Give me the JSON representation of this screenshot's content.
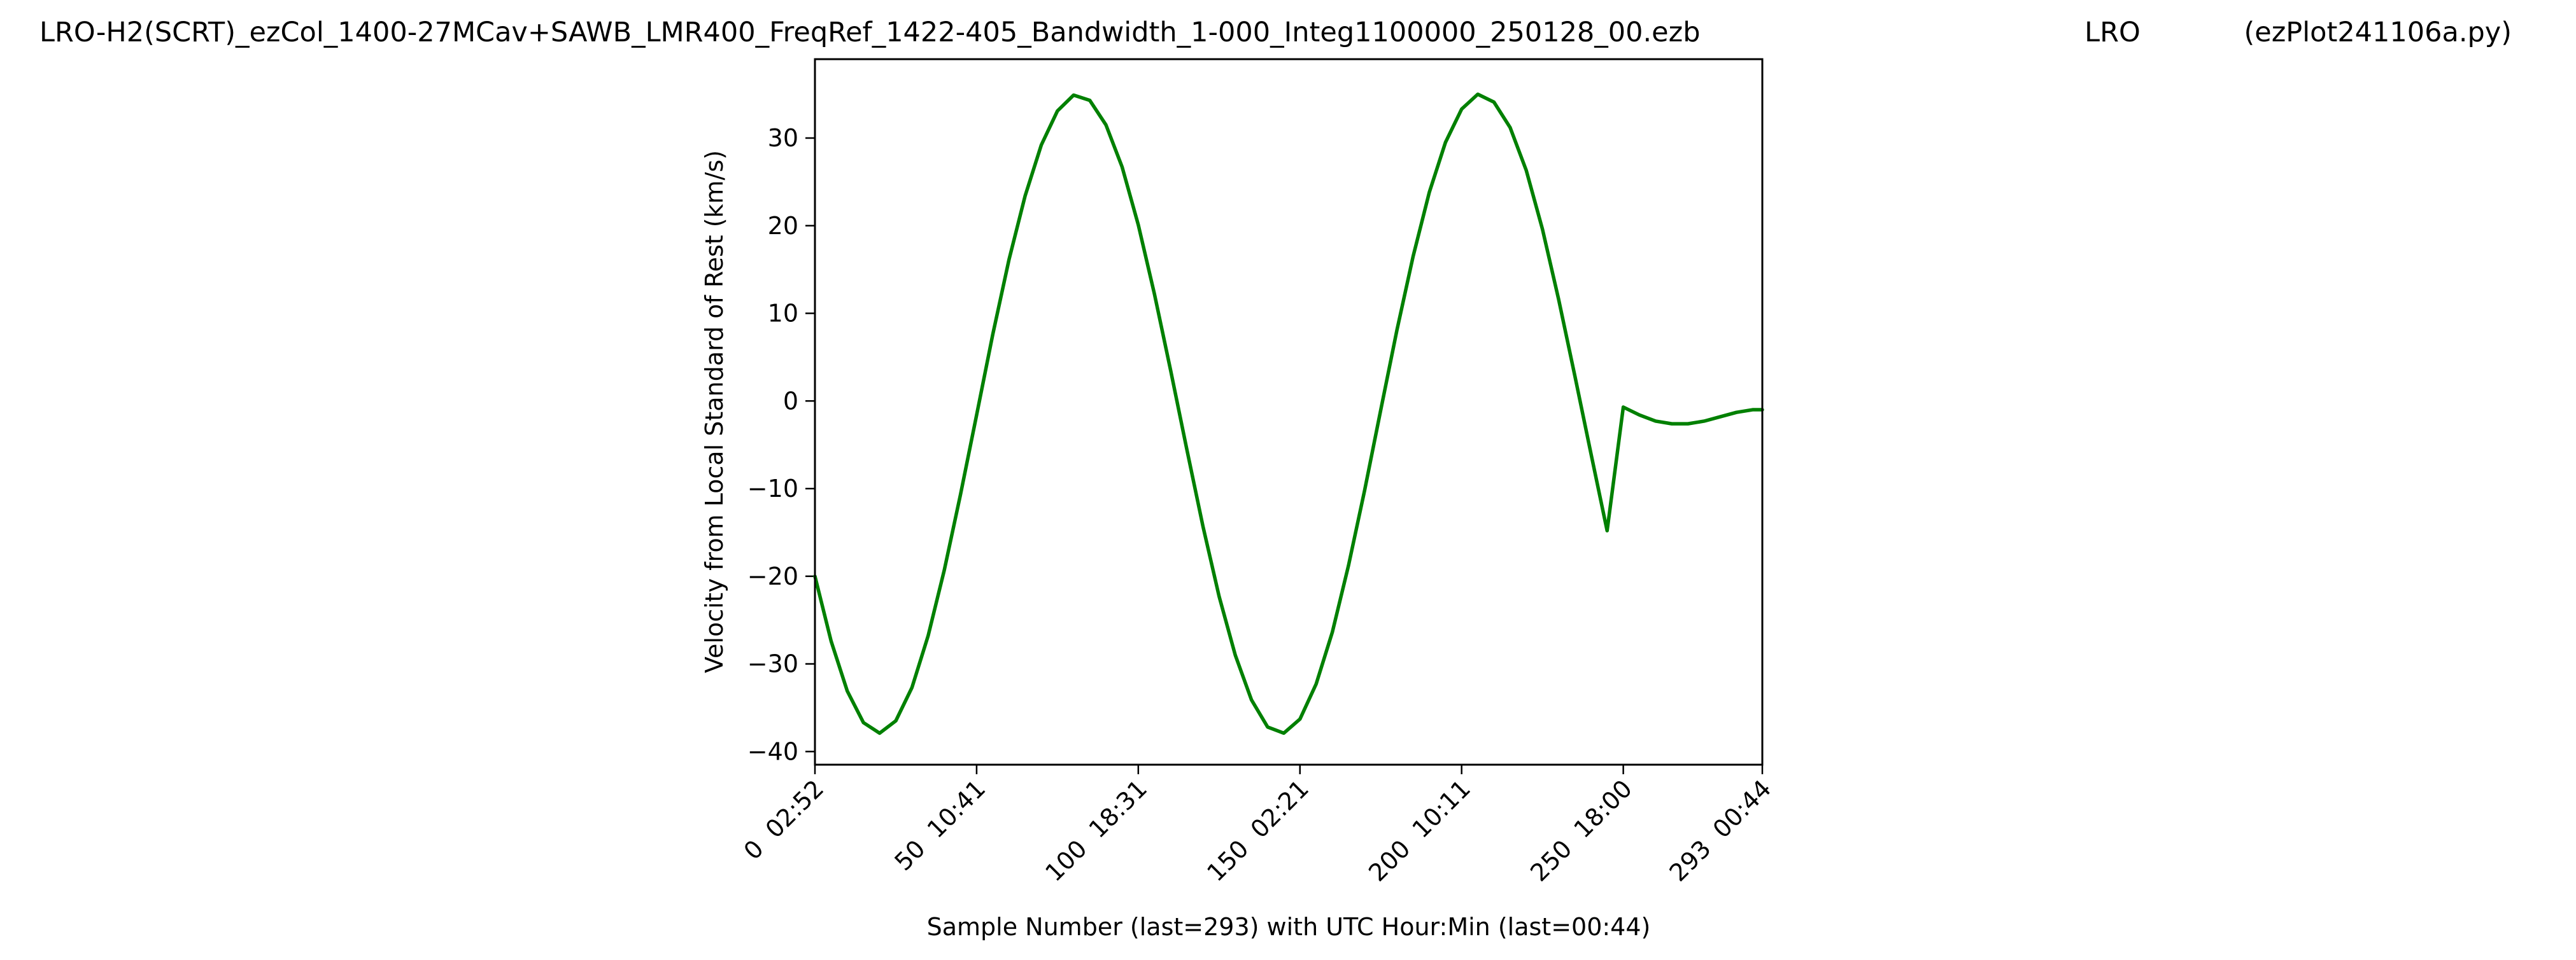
{
  "header": {
    "left": "LRO-H2(SCRT)_ezCol_1400-27MCav+SAWB_LMR400_FreqRef_1422-405_Bandwidth_1-000_Integ1100000_250128_00.ezb",
    "center": "LRO",
    "right": "(ezPlot241106a.py)"
  },
  "chart_data": {
    "type": "line",
    "title": "",
    "xlabel": "Sample Number (last=293) with UTC Hour:Min (last=00:44)",
    "ylabel": "Velocity from Local Standard of Rest (km/s)",
    "xlim": [
      0,
      293
    ],
    "ylim": [
      -41.5,
      39
    ],
    "grid": false,
    "legend": "none",
    "line_color": "#008000",
    "x_ticks": [
      {
        "value": 0,
        "label": "0  02:52"
      },
      {
        "value": 50,
        "label": "50  10:41"
      },
      {
        "value": 100,
        "label": "100  18:31"
      },
      {
        "value": 150,
        "label": "150  02:21"
      },
      {
        "value": 200,
        "label": "200  10:11"
      },
      {
        "value": 250,
        "label": "250  18:00"
      },
      {
        "value": 293,
        "label": "293  00:44"
      }
    ],
    "y_ticks": [
      {
        "value": 30,
        "label": "30"
      },
      {
        "value": 20,
        "label": "20"
      },
      {
        "value": 10,
        "label": "10"
      },
      {
        "value": 0,
        "label": "0"
      },
      {
        "value": -10,
        "label": "−10"
      },
      {
        "value": -20,
        "label": "−20"
      },
      {
        "value": -30,
        "label": "−30"
      },
      {
        "value": -40,
        "label": "−40"
      }
    ],
    "series": [
      {
        "x": [
          0,
          5,
          10,
          15,
          20,
          25,
          30,
          35,
          40,
          45,
          50,
          55,
          60,
          65,
          70,
          75,
          80,
          85,
          90,
          95,
          100,
          105,
          110,
          115,
          120,
          125,
          130,
          135,
          140,
          145,
          150,
          155,
          160,
          165,
          170,
          175,
          180,
          185,
          190,
          195,
          200,
          205,
          210,
          215,
          220,
          225,
          230,
          235,
          240,
          245,
          250,
          255,
          260,
          265,
          270,
          275,
          280,
          285,
          290,
          293
        ],
        "y": [
          -20.0,
          -27.4,
          -33.1,
          -36.7,
          -37.9,
          -36.5,
          -32.7,
          -26.8,
          -19.3,
          -10.7,
          -1.6,
          7.6,
          16.1,
          23.4,
          29.2,
          33.1,
          34.9,
          34.3,
          31.5,
          26.7,
          20.1,
          12.2,
          3.5,
          -5.5,
          -14.3,
          -22.3,
          -29.0,
          -34.1,
          -37.2,
          -37.9,
          -36.3,
          -32.3,
          -26.4,
          -18.8,
          -10.2,
          -1.0,
          8.1,
          16.5,
          23.8,
          29.5,
          33.3,
          35.0,
          34.1,
          31.2,
          26.3,
          19.6,
          11.6,
          2.9,
          -6.0,
          -14.8,
          -0.7,
          -1.6,
          -2.3,
          -2.6,
          -2.6,
          -2.3,
          -1.8,
          -1.3,
          -1.0,
          -1.0
        ]
      }
    ]
  }
}
